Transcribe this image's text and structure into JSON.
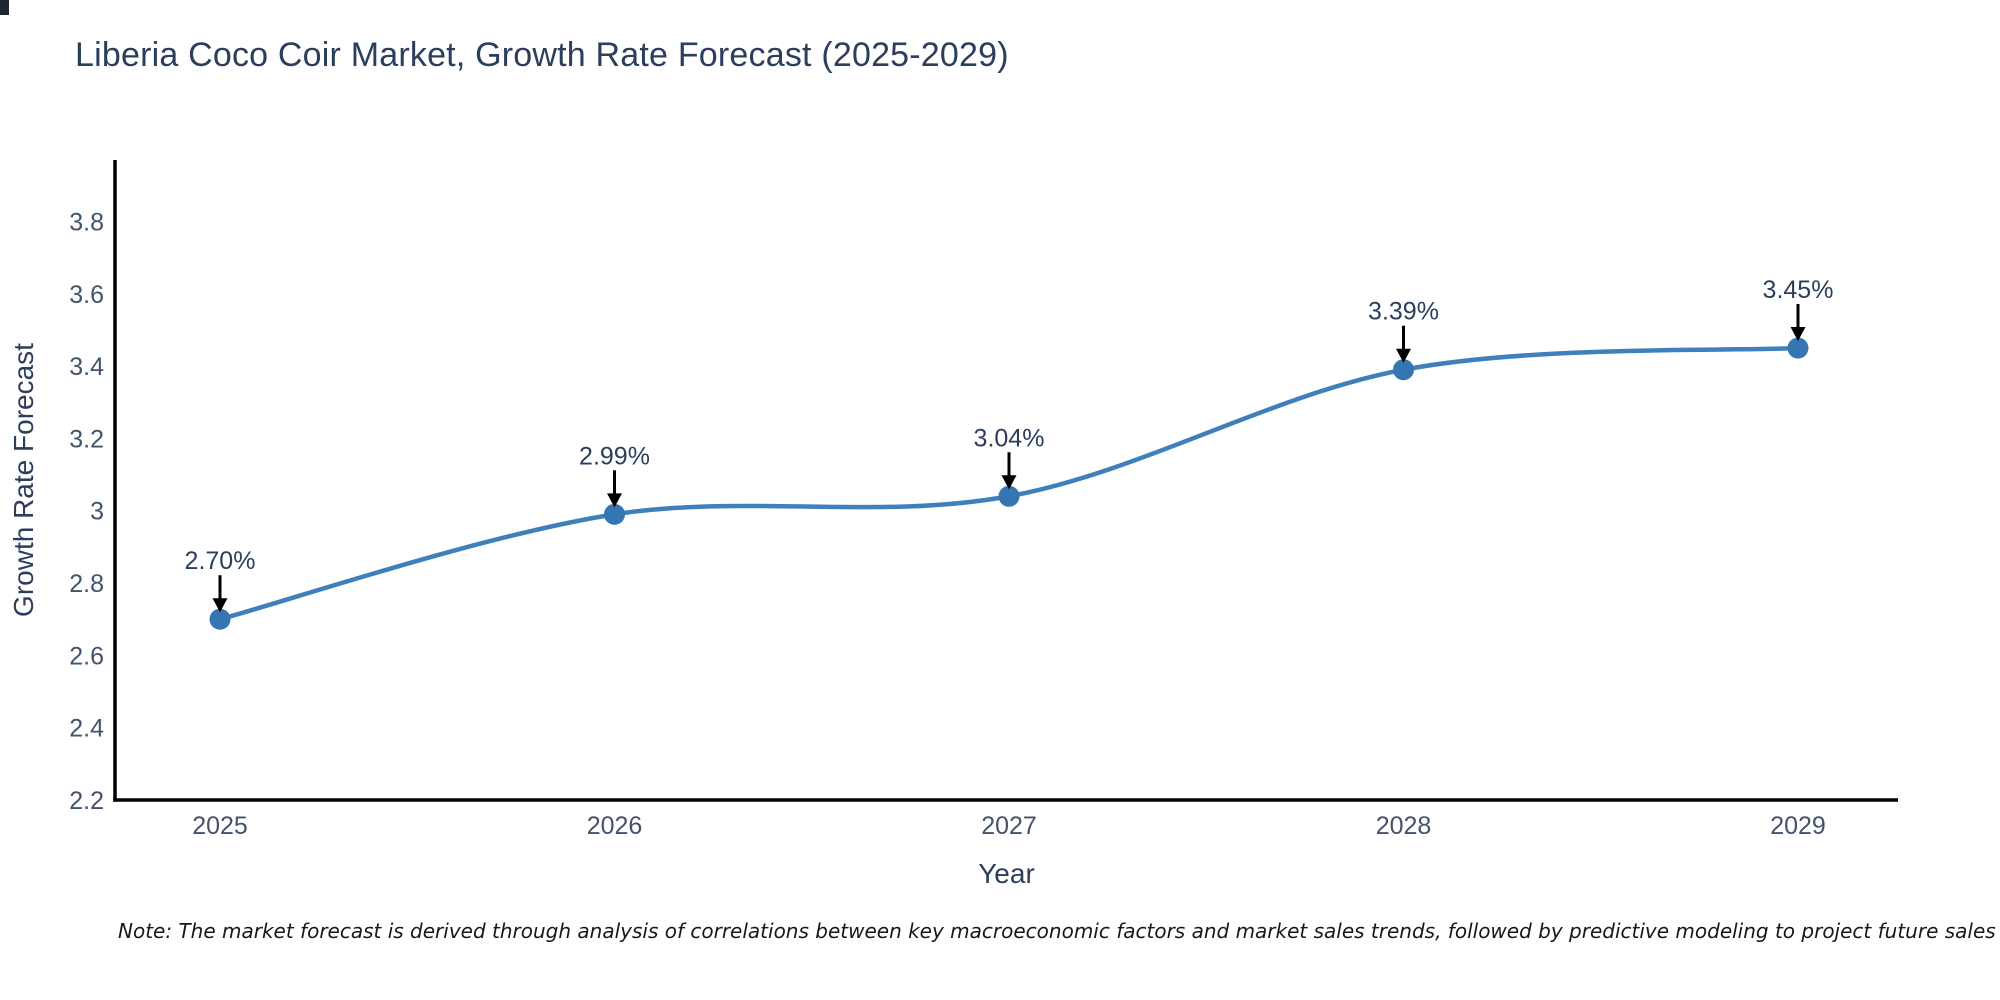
{
  "page": {
    "background": "#ffffff"
  },
  "title": "Liberia Coco Coir Market, Growth Rate Forecast (2025-2029)",
  "note": "Note: The market forecast is derived through analysis of correlations between key macroeconomic factors and market sales trends, followed by predictive modeling to project future sales",
  "chart_data": {
    "type": "line",
    "title": "Liberia Coco Coir Market, Growth Rate Forecast (2025-2029)",
    "categories": [
      "2025",
      "2026",
      "2027",
      "2028",
      "2029"
    ],
    "series": [
      {
        "name": "Growth Rate Forecast",
        "values": [
          2.7,
          2.99,
          3.04,
          3.39,
          3.45
        ]
      }
    ],
    "point_labels": [
      "2.70%",
      "2.99%",
      "3.04%",
      "3.39%",
      "3.45%"
    ],
    "xlabel": "Year",
    "ylabel": "Growth Rate Forecast",
    "ylim": [
      2.2,
      3.97
    ],
    "ytick_labels": [
      "2.2",
      "2.4",
      "2.6",
      "2.8",
      "3",
      "3.2",
      "3.4",
      "3.6",
      "3.8"
    ],
    "ytick_values": [
      2.2,
      2.4,
      2.6,
      2.8,
      3.0,
      3.2,
      3.4,
      3.6,
      3.8
    ],
    "line_shape": "spline",
    "grid": false,
    "legend": "none",
    "annotation_style": "label-with-down-arrow",
    "colors": {
      "line": "#3f7fbc",
      "marker": "#3575b2",
      "axis": "#000000",
      "arrow": "#000000",
      "tick_text": "#42536b",
      "title_text": "#2b3e5c"
    }
  }
}
